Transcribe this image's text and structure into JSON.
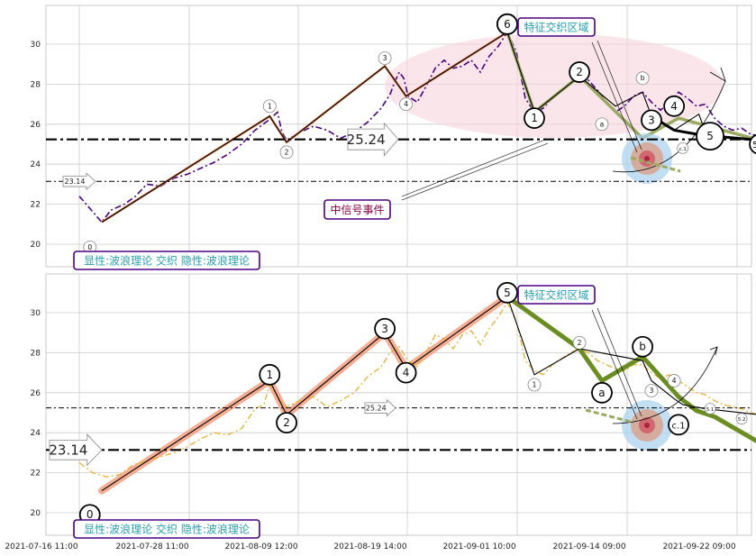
{
  "colors": {
    "grid": "#cccccc",
    "price_top": "#4b0082",
    "price_bottom": "#e8b030",
    "impulse_top": "#e07840",
    "correction_green": "#6b8e23",
    "correction_light": "#9aaa60",
    "impulse_band": "#f4a080",
    "label_border": "#4b0082",
    "label_text": "#2aa0b0",
    "event_text": "#8b0045",
    "ellipse_fill": "#f6d6dc",
    "target_blue": "#a8d0ee",
    "target_core": "#d05060"
  },
  "chart_data": [
    {
      "type": "line",
      "panel": "top",
      "ylim": [
        19,
        32
      ],
      "yticks": [
        "20",
        "22",
        "24",
        "26",
        "28",
        "30"
      ],
      "x_tick_labels": [
        "2021-07-16 11:00",
        "2021-07-28 11:00",
        "2021-08-09 12:00",
        "2021-08-19 14:00",
        "2021-09-01 10:00",
        "2021-09-14 09:00",
        "2021-09-22 09:00"
      ],
      "grid": true,
      "price_series": [
        [
          0.0,
          22.4
        ],
        [
          1.06,
          21.1
        ],
        [
          1.49,
          21.7
        ],
        [
          2.13,
          22.0
        ],
        [
          2.66,
          22.4
        ],
        [
          3.19,
          23.0
        ],
        [
          3.83,
          22.9
        ],
        [
          4.47,
          23.3
        ],
        [
          5.11,
          23.5
        ],
        [
          5.74,
          23.8
        ],
        [
          6.38,
          24.1
        ],
        [
          7.02,
          24.5
        ],
        [
          7.66,
          25.0
        ],
        [
          8.3,
          25.7
        ],
        [
          8.94,
          26.2
        ],
        [
          9.36,
          26.6
        ],
        [
          9.57,
          25.6
        ],
        [
          9.79,
          25.2
        ],
        [
          10.43,
          25.6
        ],
        [
          11.06,
          25.9
        ],
        [
          11.7,
          25.7
        ],
        [
          12.34,
          25.3
        ],
        [
          12.98,
          25.6
        ],
        [
          13.62,
          26.1
        ],
        [
          14.26,
          26.8
        ],
        [
          14.68,
          27.5
        ],
        [
          14.89,
          28.1
        ],
        [
          15.11,
          28.6
        ],
        [
          15.32,
          28.3
        ],
        [
          15.53,
          27.4
        ],
        [
          15.96,
          27.1
        ],
        [
          16.38,
          27.9
        ],
        [
          16.81,
          28.8
        ],
        [
          17.23,
          29.2
        ],
        [
          17.66,
          28.8
        ],
        [
          18.09,
          28.9
        ],
        [
          18.51,
          29.2
        ],
        [
          18.94,
          28.6
        ],
        [
          19.36,
          29.4
        ],
        [
          19.79,
          29.9
        ],
        [
          20.21,
          30.6
        ],
        [
          20.64,
          29.6
        ],
        [
          21.06,
          27.3
        ],
        [
          21.49,
          26.6
        ],
        [
          21.91,
          26.8
        ],
        [
          22.34,
          27.3
        ],
        [
          22.77,
          27.7
        ],
        [
          23.19,
          28.0
        ],
        [
          23.62,
          28.4
        ],
        [
          24.04,
          28.2
        ],
        [
          24.47,
          27.7
        ],
        [
          24.89,
          27.1
        ],
        [
          25.32,
          26.6
        ],
        [
          25.74,
          26.9
        ],
        [
          26.17,
          27.4
        ],
        [
          26.6,
          27.6
        ],
        [
          27.02,
          27.1
        ],
        [
          27.45,
          26.7
        ],
        [
          27.87,
          27.1
        ],
        [
          28.3,
          27.6
        ],
        [
          28.72,
          27.3
        ],
        [
          29.15,
          26.9
        ],
        [
          29.57,
          27.0
        ],
        [
          30.0,
          26.3
        ],
        [
          30.43,
          25.9
        ],
        [
          30.85,
          25.7
        ],
        [
          31.28,
          25.8
        ],
        [
          31.7,
          25.5
        ],
        [
          32.13,
          25.4
        ],
        [
          32.55,
          25.3
        ]
      ],
      "series": [
        {
          "name": "wave",
          "points": [
            [
              1.06,
              21.1
            ],
            [
              8.99,
              26.4
            ],
            [
              9.79,
              25.1
            ],
            [
              14.43,
              28.9
            ],
            [
              15.43,
              27.4
            ],
            [
              20.21,
              30.6
            ],
            [
              21.49,
              26.6
            ],
            [
              23.62,
              28.4
            ],
            [
              25.32,
              26.9
            ],
            [
              26.6,
              27.6
            ],
            [
              27.02,
              26.4
            ],
            [
              28.09,
              25.7
            ],
            [
              29.26,
              26.5
            ],
            [
              29.57,
              25.6
            ],
            [
              30.0,
              25.4
            ],
            [
              32.13,
              25.2
            ]
          ]
        },
        {
          "name": "bold",
          "points": [
            [
              20.21,
              30.6
            ],
            [
              21.49,
              26.6
            ],
            [
              23.62,
              28.4
            ],
            [
              26.6,
              25.3
            ],
            [
              28.3,
              26.3
            ],
            [
              32.13,
              25.2
            ]
          ]
        }
      ],
      "wave_labels": [
        {
          "label": "0",
          "x": 0.5,
          "y": 19.85,
          "size": "small"
        },
        {
          "label": "1",
          "x": 8.99,
          "y": 26.9,
          "size": "small"
        },
        {
          "label": "2",
          "x": 9.79,
          "y": 24.6,
          "size": "small"
        },
        {
          "label": "3",
          "x": 14.43,
          "y": 29.3,
          "size": "small"
        },
        {
          "label": "4",
          "x": 15.43,
          "y": 27.0,
          "size": "small"
        },
        {
          "label": "5",
          "x": 20.21,
          "y": 31.0,
          "size": "large"
        },
        {
          "label": "6",
          "x": 20.21,
          "y": 31.0,
          "size": "large"
        },
        {
          "label": "1",
          "x": 21.49,
          "y": 26.3,
          "size": "large"
        },
        {
          "label": "2",
          "x": 23.62,
          "y": 28.6,
          "size": "large"
        },
        {
          "label": "a",
          "x": 24.68,
          "y": 26.0,
          "size": "small"
        },
        {
          "label": "b",
          "x": 26.6,
          "y": 28.3,
          "size": "small"
        },
        {
          "label": "3",
          "x": 27.02,
          "y": 26.2,
          "size": "large"
        },
        {
          "label": "4",
          "x": 28.09,
          "y": 26.9,
          "size": "large"
        },
        {
          "label": "c.1",
          "x": 28.5,
          "y": 24.8,
          "size": "tiny"
        },
        {
          "label": "5",
          "x": 29.79,
          "y": 25.4,
          "size": "xlarge"
        },
        {
          "label": "5.2",
          "x": 32.13,
          "y": 25.0,
          "size": "large"
        },
        {
          "label": "c.2",
          "x": 34.04,
          "y": 23.7,
          "size": "small"
        }
      ],
      "levels": [
        {
          "value": 25.24,
          "label": "25.24",
          "style": "bold"
        },
        {
          "value": 23.14,
          "label": "23.14",
          "style": "thin"
        }
      ],
      "annotations": [
        {
          "key": "feature_zone",
          "text": "特征交织区域"
        },
        {
          "key": "signal_event",
          "text": "中信号事件"
        },
        {
          "key": "legend",
          "text": "显性:波浪理论 交织 隐性:波浪理论"
        }
      ]
    },
    {
      "type": "line",
      "panel": "bottom",
      "ylim": [
        19,
        32
      ],
      "yticks": [
        "20",
        "22",
        "24",
        "26",
        "28",
        "30"
      ],
      "x_tick_labels": [
        "2021-07-16 11:00",
        "2021-07-28 11:00",
        "2021-08-09 12:00",
        "2021-08-19 14:00",
        "2021-09-01 10:00",
        "2021-09-14 09:00",
        "2021-09-22 09:00"
      ],
      "grid": true,
      "price_series": [
        [
          0.0,
          22.5
        ],
        [
          0.64,
          22.0
        ],
        [
          1.28,
          21.8
        ],
        [
          1.91,
          21.9
        ],
        [
          2.55,
          22.4
        ],
        [
          3.19,
          22.6
        ],
        [
          3.83,
          22.8
        ],
        [
          4.47,
          23.0
        ],
        [
          5.11,
          23.3
        ],
        [
          5.74,
          23.7
        ],
        [
          6.38,
          24.0
        ],
        [
          7.02,
          23.9
        ],
        [
          7.66,
          24.2
        ],
        [
          8.3,
          25.2
        ],
        [
          8.72,
          25.4
        ],
        [
          8.99,
          26.4
        ],
        [
          9.36,
          25.8
        ],
        [
          9.79,
          25.3
        ],
        [
          10.43,
          25.6
        ],
        [
          11.06,
          25.8
        ],
        [
          11.7,
          25.3
        ],
        [
          12.34,
          25.6
        ],
        [
          12.98,
          26.0
        ],
        [
          13.62,
          26.8
        ],
        [
          14.26,
          27.3
        ],
        [
          14.68,
          28.0
        ],
        [
          15.11,
          28.3
        ],
        [
          15.53,
          27.6
        ],
        [
          15.96,
          27.3
        ],
        [
          16.38,
          28.0
        ],
        [
          16.81,
          28.9
        ],
        [
          17.23,
          28.7
        ],
        [
          17.66,
          28.2
        ],
        [
          18.09,
          28.9
        ],
        [
          18.51,
          29.1
        ],
        [
          18.94,
          28.4
        ],
        [
          19.36,
          29.2
        ],
        [
          19.79,
          29.8
        ],
        [
          20.21,
          30.5
        ],
        [
          20.64,
          29.6
        ],
        [
          21.06,
          27.6
        ],
        [
          21.49,
          27.1
        ],
        [
          21.91,
          26.9
        ],
        [
          22.34,
          27.4
        ],
        [
          22.77,
          27.7
        ],
        [
          23.19,
          28.0
        ],
        [
          23.62,
          28.2
        ],
        [
          24.04,
          28.0
        ],
        [
          24.47,
          27.6
        ],
        [
          24.89,
          27.4
        ],
        [
          25.32,
          27.2
        ],
        [
          25.74,
          27.1
        ],
        [
          26.17,
          27.4
        ],
        [
          26.6,
          27.4
        ],
        [
          27.02,
          27.0
        ],
        [
          27.45,
          26.7
        ],
        [
          27.87,
          26.9
        ],
        [
          28.3,
          26.6
        ],
        [
          28.72,
          26.3
        ],
        [
          29.15,
          26.0
        ],
        [
          29.57,
          25.9
        ],
        [
          30.0,
          25.6
        ],
        [
          30.43,
          25.4
        ],
        [
          30.85,
          25.3
        ],
        [
          31.28,
          25.2
        ],
        [
          31.7,
          25.0
        ],
        [
          32.13,
          24.9
        ],
        [
          32.55,
          24.7
        ]
      ],
      "series": [
        {
          "name": "wave",
          "points": [
            [
              1.06,
              21.1
            ],
            [
              8.99,
              26.6
            ],
            [
              9.79,
              24.9
            ],
            [
              14.43,
              29.0
            ],
            [
              15.43,
              27.2
            ],
            [
              20.21,
              30.8
            ],
            [
              21.49,
              26.9
            ],
            [
              23.62,
              28.2
            ],
            [
              26.6,
              27.6
            ],
            [
              27.02,
              26.6
            ],
            [
              28.09,
              25.7
            ],
            [
              28.5,
              25.4
            ],
            [
              29.57,
              25.2
            ],
            [
              32.13,
              24.9
            ]
          ]
        },
        {
          "name": "bold",
          "points": [
            [
              20.21,
              30.8
            ],
            [
              23.62,
              28.2
            ],
            [
              24.68,
              26.6
            ],
            [
              26.6,
              27.8
            ],
            [
              28.3,
              25.8
            ],
            [
              29.15,
              25.1
            ],
            [
              30.0,
              24.8
            ],
            [
              32.13,
              23.5
            ]
          ]
        }
      ],
      "wave_labels": [
        {
          "label": "0",
          "x": 0.5,
          "y": 19.9,
          "size": "large"
        },
        {
          "label": "1",
          "x": 8.99,
          "y": 26.9,
          "size": "large"
        },
        {
          "label": "2",
          "x": 9.79,
          "y": 24.5,
          "size": "large"
        },
        {
          "label": "3",
          "x": 14.43,
          "y": 29.2,
          "size": "large"
        },
        {
          "label": "4",
          "x": 15.43,
          "y": 27.0,
          "size": "large"
        },
        {
          "label": "5",
          "x": 20.21,
          "y": 31.0,
          "size": "large"
        },
        {
          "label": "1",
          "x": 21.49,
          "y": 26.4,
          "size": "small"
        },
        {
          "label": "2",
          "x": 23.62,
          "y": 28.5,
          "size": "small"
        },
        {
          "label": "a",
          "x": 24.68,
          "y": 26.0,
          "size": "large"
        },
        {
          "label": "b",
          "x": 26.6,
          "y": 28.3,
          "size": "large"
        },
        {
          "label": "3",
          "x": 27.02,
          "y": 26.1,
          "size": "small"
        },
        {
          "label": "4",
          "x": 28.09,
          "y": 26.6,
          "size": "small"
        },
        {
          "label": "c.1",
          "x": 28.3,
          "y": 24.4,
          "size": "large"
        },
        {
          "label": "5.1",
          "x": 29.79,
          "y": 25.2,
          "size": "tiny"
        },
        {
          "label": "5.2",
          "x": 31.28,
          "y": 24.7,
          "size": "tiny"
        },
        {
          "label": "c.2",
          "x": 34.04,
          "y": 23.5,
          "size": "large"
        }
      ],
      "levels": [
        {
          "value": 25.24,
          "label": "25.24",
          "style": "thin"
        },
        {
          "value": 23.14,
          "label": "23.14",
          "style": "bold"
        }
      ],
      "annotations": [
        {
          "key": "feature_zone",
          "text": "特征交织区域"
        },
        {
          "key": "legend",
          "text": "显性:波浪理论 交织 隐性:波浪理论"
        }
      ]
    }
  ]
}
